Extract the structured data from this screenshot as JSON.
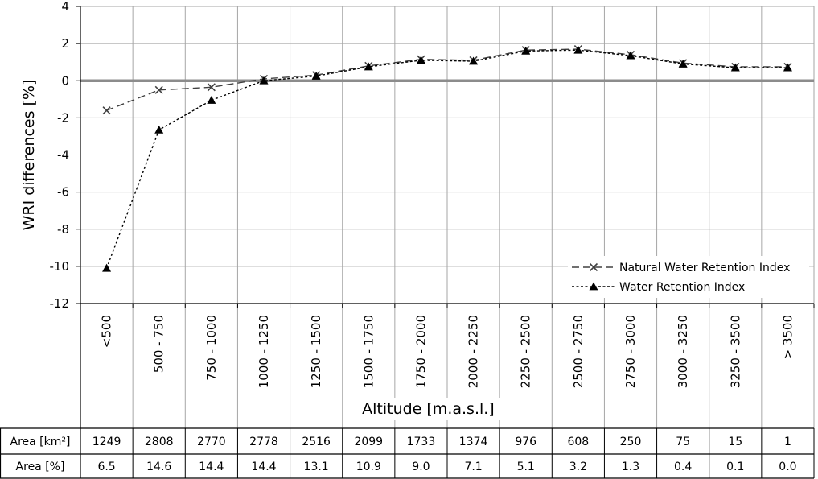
{
  "chart_data": {
    "type": "line",
    "ylabel": "WRI differences [%]",
    "xlabel": "Altitude [m.a.s.l.]",
    "ylim": [
      -12,
      4
    ],
    "yticks": [
      4,
      2,
      0,
      -2,
      -4,
      -6,
      -8,
      -10,
      -12
    ],
    "grid": true,
    "legend_position": "bottom-right",
    "categories": [
      "<500",
      "500 - 750",
      "750 - 1000",
      "1000 - 1250",
      "1250 - 1500",
      "1500 - 1750",
      "1750 - 2000",
      "2000 - 2250",
      "2250 - 2500",
      "2500 - 2750",
      "2750 - 3000",
      "3000 - 3250",
      "3250 - 3500",
      "> 3500"
    ],
    "series": [
      {
        "name": "Natural Water Retention Index",
        "marker": "x",
        "dash": "dashed",
        "color": "#404040",
        "values": [
          -1.6,
          -0.5,
          -0.35,
          0.1,
          0.3,
          0.8,
          1.15,
          1.1,
          1.65,
          1.7,
          1.4,
          0.95,
          0.75,
          0.75
        ]
      },
      {
        "name": "Water Retention Index",
        "marker": "triangle",
        "dash": "dotted",
        "color": "#000000",
        "values": [
          -10.1,
          -2.65,
          -1.05,
          0.0,
          0.25,
          0.75,
          1.1,
          1.05,
          1.6,
          1.65,
          1.35,
          0.9,
          0.7,
          0.7
        ]
      }
    ],
    "table": {
      "rows": [
        {
          "label": "Area [km²]",
          "values": [
            "1249",
            "2808",
            "2770",
            "2778",
            "2516",
            "2099",
            "1733",
            "1374",
            "976",
            "608",
            "250",
            "75",
            "15",
            "1"
          ]
        },
        {
          "label": "Area [%]",
          "values": [
            "6.5",
            "14.6",
            "14.4",
            "14.4",
            "13.1",
            "10.9",
            "9.0",
            "7.1",
            "5.1",
            "3.2",
            "1.3",
            "0.4",
            "0.1",
            "0.0"
          ]
        }
      ]
    },
    "colors": {
      "zero_line": "#8c8c8c",
      "grid": "#a6a6a6",
      "axis": "#000000"
    }
  }
}
